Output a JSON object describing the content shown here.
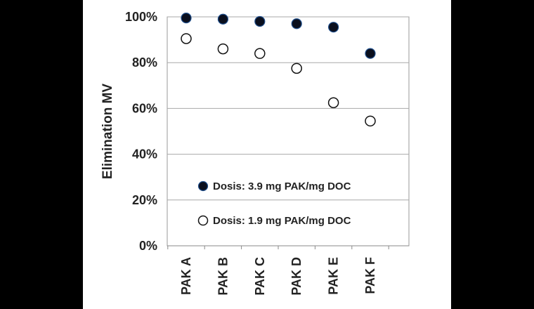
{
  "chart_data": {
    "type": "scatter",
    "categories": [
      "PAK A",
      "PAK B",
      "PAK C",
      "PAK D",
      "PAK E",
      "PAK F"
    ],
    "series": [
      {
        "name": "Dosis: 3.9 mg PAK/mg DOC",
        "marker": "filled",
        "color": "#0a0f1e",
        "values": [
          0.995,
          0.99,
          0.98,
          0.97,
          0.955,
          0.84
        ]
      },
      {
        "name": "Dosis: 1.9 mg PAK/mg DOC",
        "marker": "hollow",
        "color": "#ffffff",
        "values": [
          0.905,
          0.86,
          0.84,
          0.775,
          0.625,
          0.545
        ]
      }
    ],
    "ylabel": "Elimination MV",
    "xlabel": "",
    "ylim": [
      0,
      1.0
    ],
    "yticks": [
      0,
      0.2,
      0.4,
      0.6,
      0.8,
      1.0
    ],
    "ytick_labels": [
      "0%",
      "20%",
      "40%",
      "60%",
      "80%",
      "100%"
    ],
    "grid": true,
    "legend_position": "bottom-left inside"
  }
}
